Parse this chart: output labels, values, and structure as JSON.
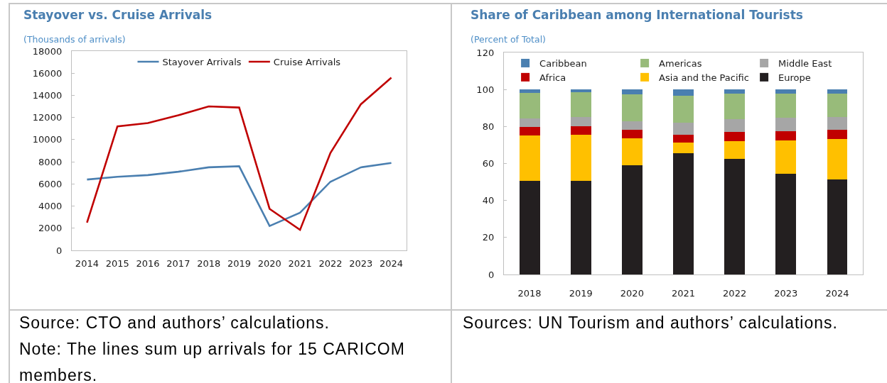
{
  "chart_data": [
    {
      "type": "line",
      "title": "Stayover vs. Cruise Arrivals",
      "subtitle": "(Thousands of arrivals)",
      "categories": [
        "2014",
        "2015",
        "2016",
        "2017",
        "2018",
        "2019",
        "2020",
        "2021",
        "2022",
        "2023",
        "2024"
      ],
      "series": [
        {
          "name": "Stayover Arrivals",
          "color": "#4a7fb0",
          "values": [
            6400,
            6650,
            6800,
            7100,
            7500,
            7600,
            2200,
            3400,
            6200,
            7500,
            7900
          ]
        },
        {
          "name": "Cruise Arrivals",
          "color": "#c00000",
          "values": [
            2500,
            11200,
            11500,
            12200,
            13000,
            12900,
            3750,
            1850,
            8800,
            13200,
            15600
          ]
        }
      ],
      "ylim": [
        0,
        18000
      ],
      "yticks": [
        0,
        2000,
        4000,
        6000,
        8000,
        10000,
        12000,
        14000,
        16000,
        18000
      ],
      "grid": false,
      "legend": "top",
      "marker": "none",
      "line_style": "solid",
      "annotations": [
        "Source: CTO and authors’ calculations.",
        "Note: The lines sum up arrivals for 15 CARICOM members."
      ]
    },
    {
      "type": "bar",
      "stacked": true,
      "title": "Share of Caribbean among International Tourists",
      "subtitle": "(Percent of Total)",
      "categories": [
        "2018",
        "2019",
        "2020",
        "2021",
        "2022",
        "2023",
        "2024"
      ],
      "series": [
        {
          "name": "Europe",
          "color": "#231f20",
          "values": [
            50.5,
            50.7,
            58.9,
            65.4,
            62.4,
            54.3,
            51.4
          ]
        },
        {
          "name": "Asia and the Pacific",
          "color": "#ffc000",
          "values": [
            24.8,
            24.9,
            14.6,
            5.9,
            9.8,
            18.3,
            21.8
          ]
        },
        {
          "name": "Africa",
          "color": "#c00000",
          "values": [
            4.5,
            4.5,
            4.6,
            4.1,
            4.7,
            5.0,
            4.9
          ]
        },
        {
          "name": "Middle East",
          "color": "#a6a6a6",
          "values": [
            4.7,
            4.9,
            4.7,
            6.8,
            6.9,
            7.1,
            6.9
          ]
        },
        {
          "name": "Americas",
          "color": "#98bb7a",
          "values": [
            13.6,
            13.4,
            14.5,
            14.6,
            13.8,
            13.2,
            12.8
          ]
        },
        {
          "name": "Caribbean",
          "color": "#4a7fb0",
          "values": [
            1.9,
            1.6,
            2.7,
            3.2,
            2.4,
            2.1,
            2.2
          ]
        }
      ],
      "ylim": [
        0,
        120
      ],
      "yticks": [
        0,
        20,
        40,
        60,
        80,
        100,
        120
      ],
      "grid": false,
      "legend": "top",
      "annotations": [
        "Sources: UN Tourism and authors’ calculations."
      ]
    }
  ]
}
